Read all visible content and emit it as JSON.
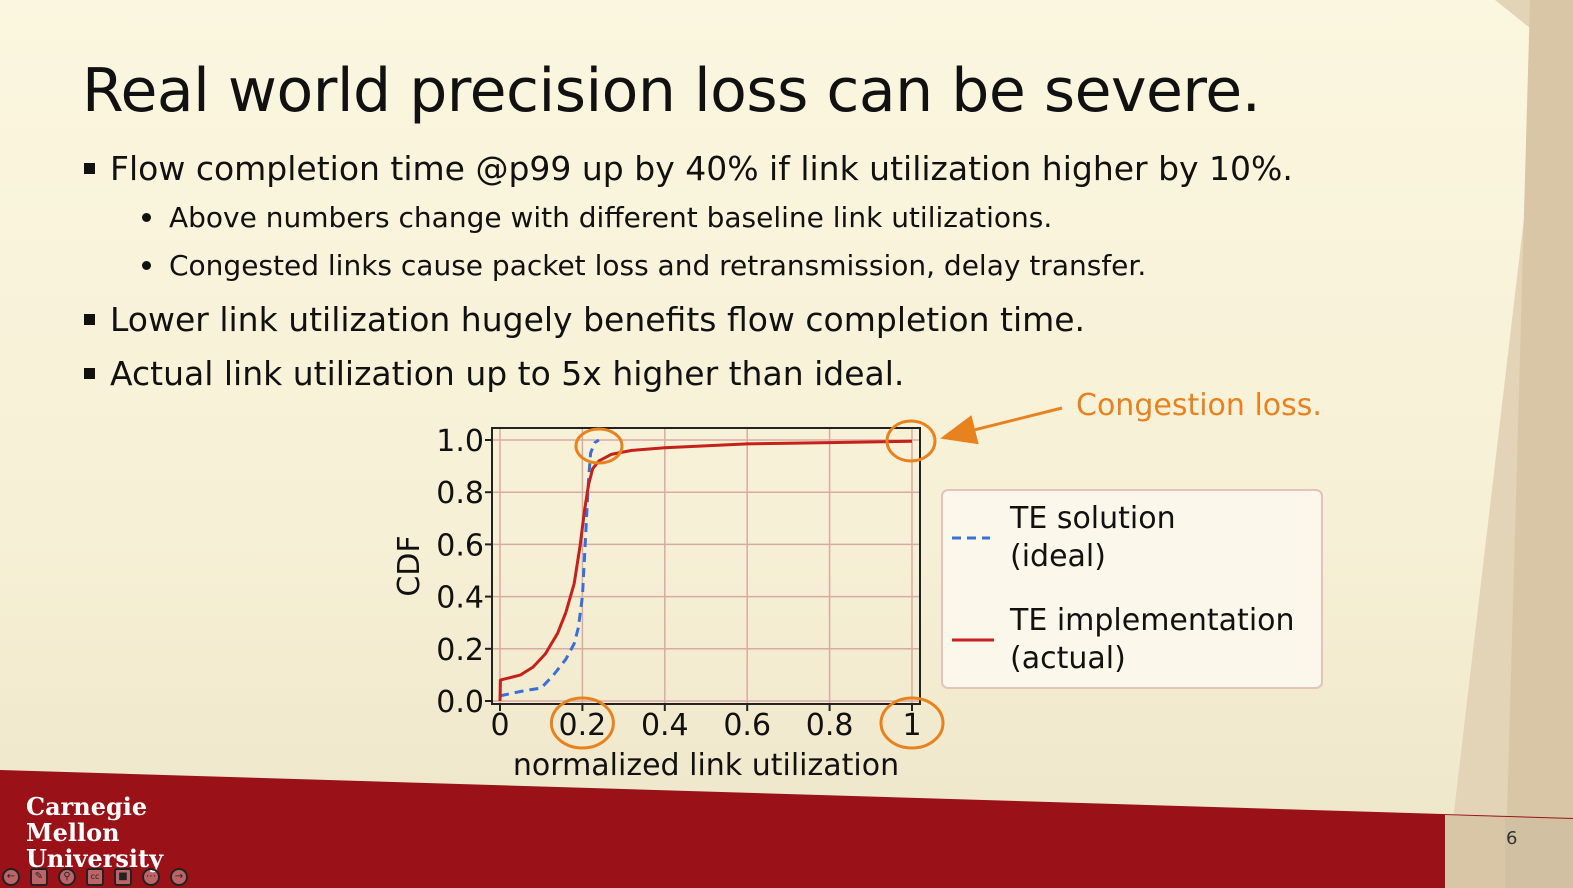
{
  "slide": {
    "title": "Real world precision loss can be severe.",
    "bullets": [
      "Flow completion time @p99 up by 40% if link utilization higher by 10%.",
      "Lower link utilization hugely benefits flow completion time.",
      "Actual link utilization up to 5x higher than ideal."
    ],
    "sub_bullets": [
      "Above numbers change with different baseline link utilizations.",
      "Congested links cause packet loss and retransmission, delay transfer."
    ],
    "page_number": "6",
    "logo_text": "Carnegie Mellon University"
  },
  "colors": {
    "background": "#f7f2dc",
    "footer": "#9a1218",
    "accent_orange": "#e8821e",
    "ideal_series": "#3a6fd8",
    "actual_series": "#c6201a",
    "grid": "#d9aaa4"
  },
  "chart_data": {
    "type": "line",
    "xlabel": "normalized link utilization",
    "ylabel": "CDF",
    "xlim": [
      0,
      1
    ],
    "ylim": [
      0,
      1
    ],
    "x_ticks": [
      0,
      0.2,
      0.4,
      0.6,
      0.8,
      1
    ],
    "x_tick_labels": [
      "0",
      "0.2",
      "0.4",
      "0.6",
      "0.8",
      "1"
    ],
    "y_ticks": [
      0,
      0.2,
      0.4,
      0.6,
      0.8,
      1
    ],
    "y_tick_labels": [
      "0.0",
      "0.2",
      "0.4",
      "0.6",
      "0.8",
      "1.0"
    ],
    "grid": true,
    "legend_position": "right",
    "annotation": "Congestion loss.",
    "highlighted_x": [
      0.2,
      1
    ],
    "series": [
      {
        "legend_lines": [
          "TE solution",
          "(ideal)"
        ],
        "style": "dashed",
        "x": [
          0,
          0.03,
          0.06,
          0.1,
          0.13,
          0.16,
          0.18,
          0.19,
          0.2,
          0.205,
          0.21,
          0.215,
          0.22,
          0.23,
          0.24
        ],
        "y": [
          0.02,
          0.03,
          0.04,
          0.05,
          0.1,
          0.16,
          0.22,
          0.28,
          0.4,
          0.55,
          0.7,
          0.85,
          0.95,
          0.99,
          1.0
        ]
      },
      {
        "legend_lines": [
          "TE implementation",
          "(actual)"
        ],
        "style": "solid",
        "x": [
          0,
          0.001,
          0.05,
          0.08,
          0.11,
          0.14,
          0.16,
          0.18,
          0.195,
          0.205,
          0.215,
          0.225,
          0.24,
          0.27,
          0.32,
          0.4,
          0.6,
          0.8,
          1.0
        ],
        "y": [
          0.0,
          0.08,
          0.1,
          0.13,
          0.18,
          0.26,
          0.34,
          0.45,
          0.6,
          0.73,
          0.83,
          0.89,
          0.92,
          0.945,
          0.96,
          0.97,
          0.985,
          0.99,
          0.995
        ]
      }
    ]
  }
}
